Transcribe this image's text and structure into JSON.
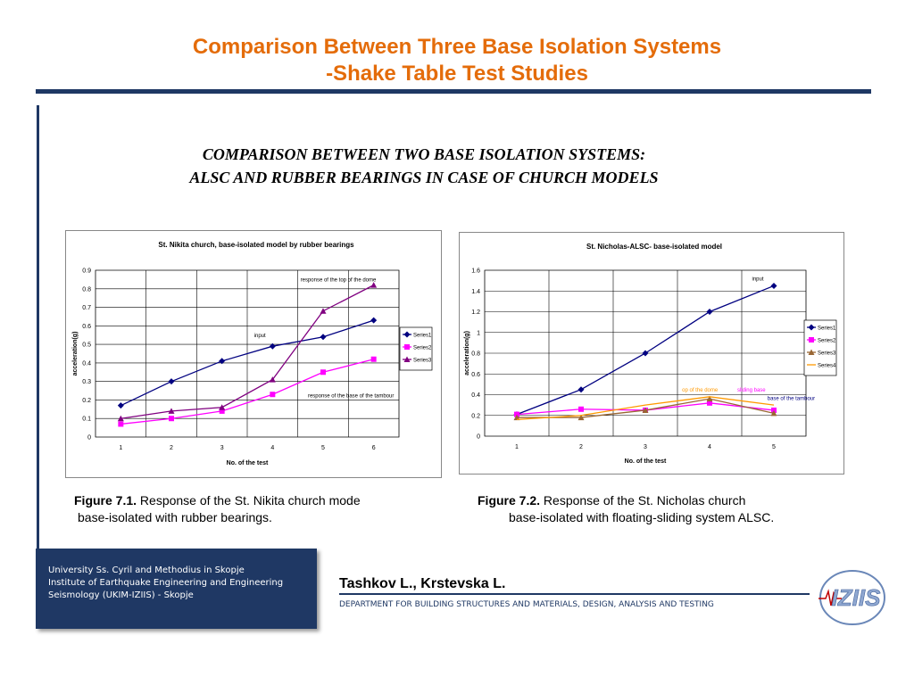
{
  "slide": {
    "title_line1": "Comparison Between Three Base Isolation Systems",
    "title_line2": "-Shake Table Test Studies",
    "subtitle_line1": "COMPARISON BETWEEN TWO BASE ISOLATION SYSTEMS:",
    "subtitle_line2": "ALSC AND RUBBER BEARINGS IN CASE OF  CHURCH MODELS",
    "caption1_label": "Figure 7.1.",
    "caption1_text": " Response of the St. Nikita church mode",
    "caption1_line2": "base-isolated with rubber bearings.",
    "caption2_label": "Figure 7.2.",
    "caption2_text": " Response of the St. Nicholas church",
    "caption2_line2": "base-isolated with floating-sliding system ALSC.",
    "footer_line1": "University Ss. Cyril and Methodius in Skopje",
    "footer_line2": "Institute of Earthquake Engineering and Engineering",
    "footer_line3": "Seismology (UKIM-IZIIS) - Skopje",
    "authors": "Tashkov L., Krstevska L.",
    "department": "DEPARTMENT FOR BUILDING STRUCTURES AND MATERIALS, DESIGN, ANALYSIS AND TESTING",
    "logo_text": "IZIIS"
  },
  "chart_data": [
    {
      "type": "line",
      "title": "St. Nikita church,  base-isolated model by rubber bearings",
      "xlabel": "No. of the test",
      "ylabel": "acceleration(g)",
      "x": [
        1,
        2,
        3,
        4,
        5,
        6
      ],
      "ylim": [
        0,
        0.9
      ],
      "yticks": [
        0,
        0.1,
        0.2,
        0.3,
        0.4,
        0.5,
        0.6,
        0.7,
        0.8,
        0.9
      ],
      "grid": true,
      "legend": "right",
      "series": [
        {
          "name": "Series1",
          "values": [
            0.17,
            0.3,
            0.41,
            0.49,
            0.54,
            0.63
          ],
          "color": "#000080",
          "marker": "diamond"
        },
        {
          "name": "Series2",
          "values": [
            0.07,
            0.1,
            0.14,
            0.23,
            0.35,
            0.42
          ],
          "color": "#ff00ff",
          "marker": "square"
        },
        {
          "name": "Series3",
          "values": [
            0.1,
            0.14,
            0.16,
            0.31,
            0.68,
            0.82
          ],
          "color": "#800080",
          "marker": "triangle"
        }
      ],
      "annotations": [
        {
          "text": "response of the top of the dome",
          "color": "#000000",
          "x": 5.3,
          "y": 0.84
        },
        {
          "text": "input",
          "color": "#000000",
          "x": 3.75,
          "y": 0.54
        },
        {
          "text": "response of the base of the tambour",
          "color": "#000000",
          "x": 5.55,
          "y": 0.215
        }
      ]
    },
    {
      "type": "line",
      "title": "St. Nicholas-ALSC- base-isolated model",
      "xlabel": "No. of the test",
      "ylabel": "acceleration(g)",
      "x": [
        1,
        2,
        3,
        4,
        5
      ],
      "ylim": [
        0,
        1.6
      ],
      "yticks": [
        0,
        0.2,
        0.4,
        0.6,
        0.8,
        1.0,
        1.2,
        1.4,
        1.6
      ],
      "ytick_labels": [
        "0",
        "0.2",
        "0.4",
        "0.6",
        "0.8",
        "1",
        "1.2",
        "1.4",
        "1.6"
      ],
      "grid": true,
      "legend": "right",
      "series": [
        {
          "name": "Series1",
          "values": [
            0.21,
            0.45,
            0.8,
            1.2,
            1.45
          ],
          "color": "#000080",
          "marker": "diamond"
        },
        {
          "name": "Series2",
          "values": [
            0.21,
            0.26,
            0.25,
            0.32,
            0.25
          ],
          "color": "#ff00ff",
          "marker": "square"
        },
        {
          "name": "Series3",
          "values": [
            0.18,
            0.18,
            0.25,
            0.36,
            0.22
          ],
          "color": "#996633",
          "marker": "triangle"
        },
        {
          "name": "Series4",
          "values": [
            0.16,
            0.2,
            0.3,
            0.38,
            0.3
          ],
          "color": "#ff9900",
          "marker": "none"
        }
      ],
      "annotations": [
        {
          "text": "input",
          "color": "#000000",
          "x": 4.75,
          "y": 1.5
        },
        {
          "text": "op of the dome",
          "color": "#ff9900",
          "x": 3.85,
          "y": 0.43
        },
        {
          "text": "sliding base",
          "color": "#ff00ff",
          "x": 4.65,
          "y": 0.43
        },
        {
          "text": "base of the tambour",
          "color": "#000080",
          "x": 5.27,
          "y": 0.35
        }
      ]
    }
  ]
}
